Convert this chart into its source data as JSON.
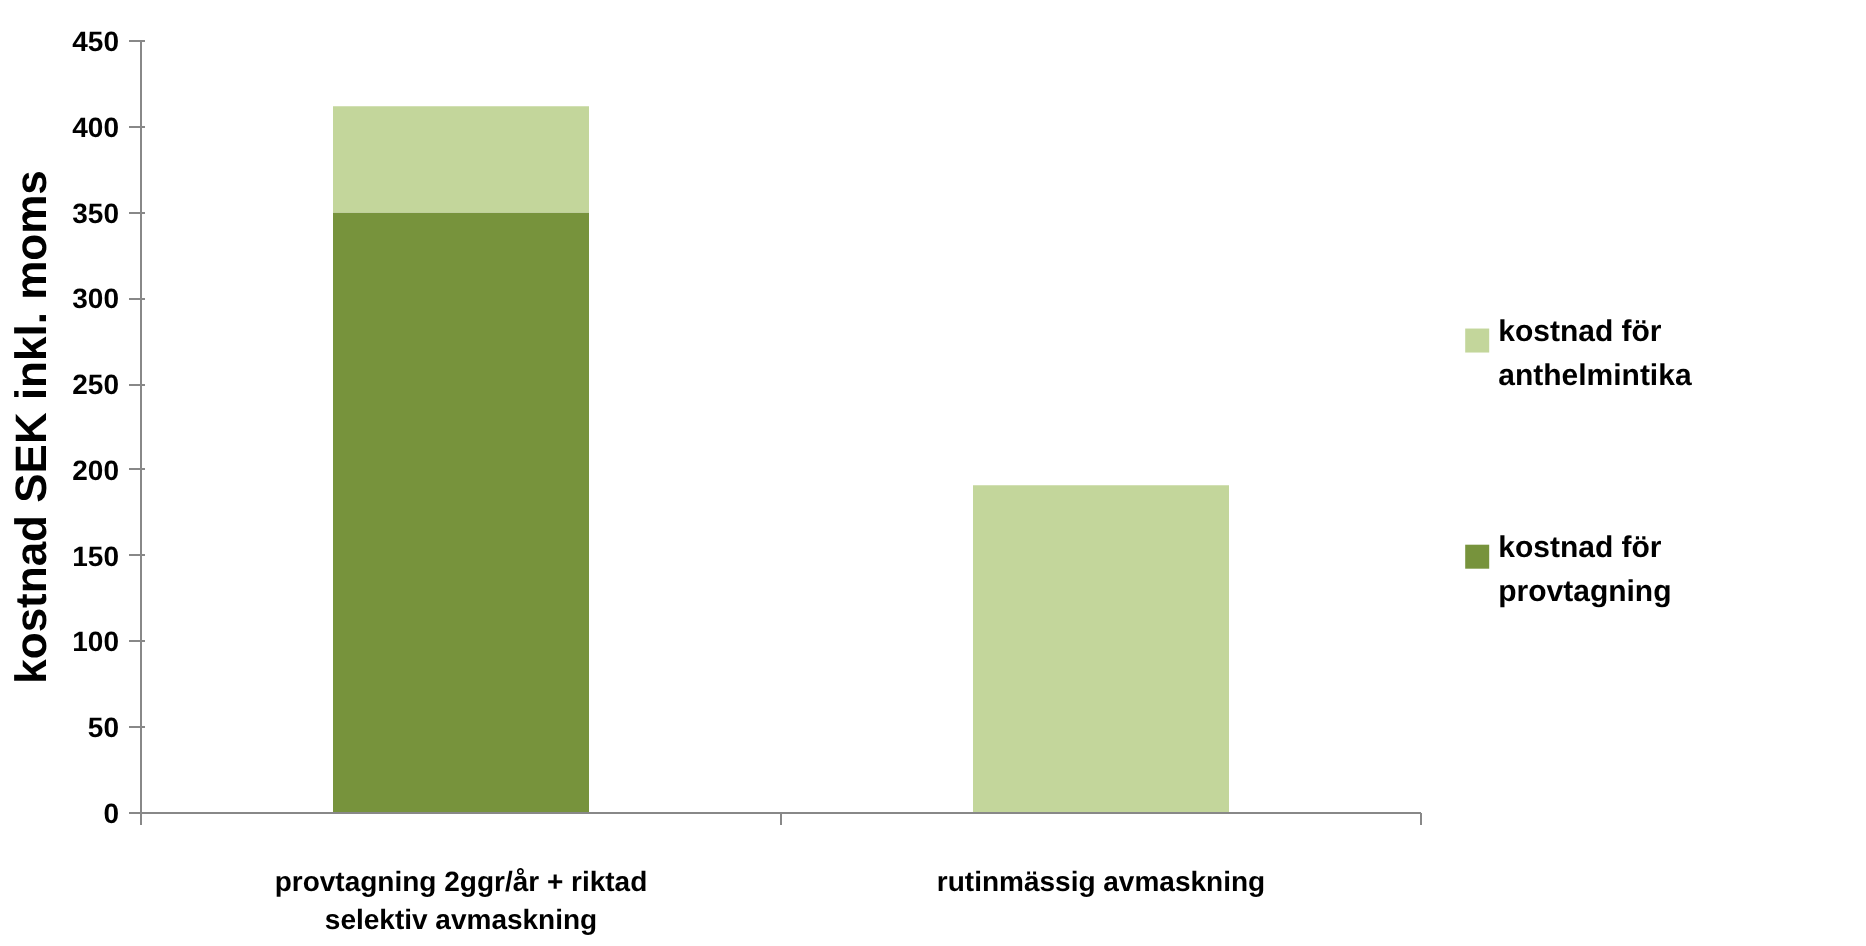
{
  "chart_data": {
    "type": "bar",
    "stacked": true,
    "ylabel": "kostnad SEK inkl. moms",
    "categories": [
      "provtagning 2ggr/år + riktad selektiv avmaskning",
      "rutinmässig avmaskning"
    ],
    "series": [
      {
        "name": "kostnad för provtagning",
        "color": "#77933c",
        "values": [
          350,
          0
        ]
      },
      {
        "name": "kostnad för anthelmintika",
        "color": "#c3d69b",
        "values": [
          62,
          191
        ]
      }
    ],
    "ylim": [
      0,
      450
    ],
    "yticks": [
      0,
      50,
      100,
      150,
      200,
      250,
      300,
      350,
      400,
      450
    ],
    "grid": false,
    "legend": "right"
  }
}
